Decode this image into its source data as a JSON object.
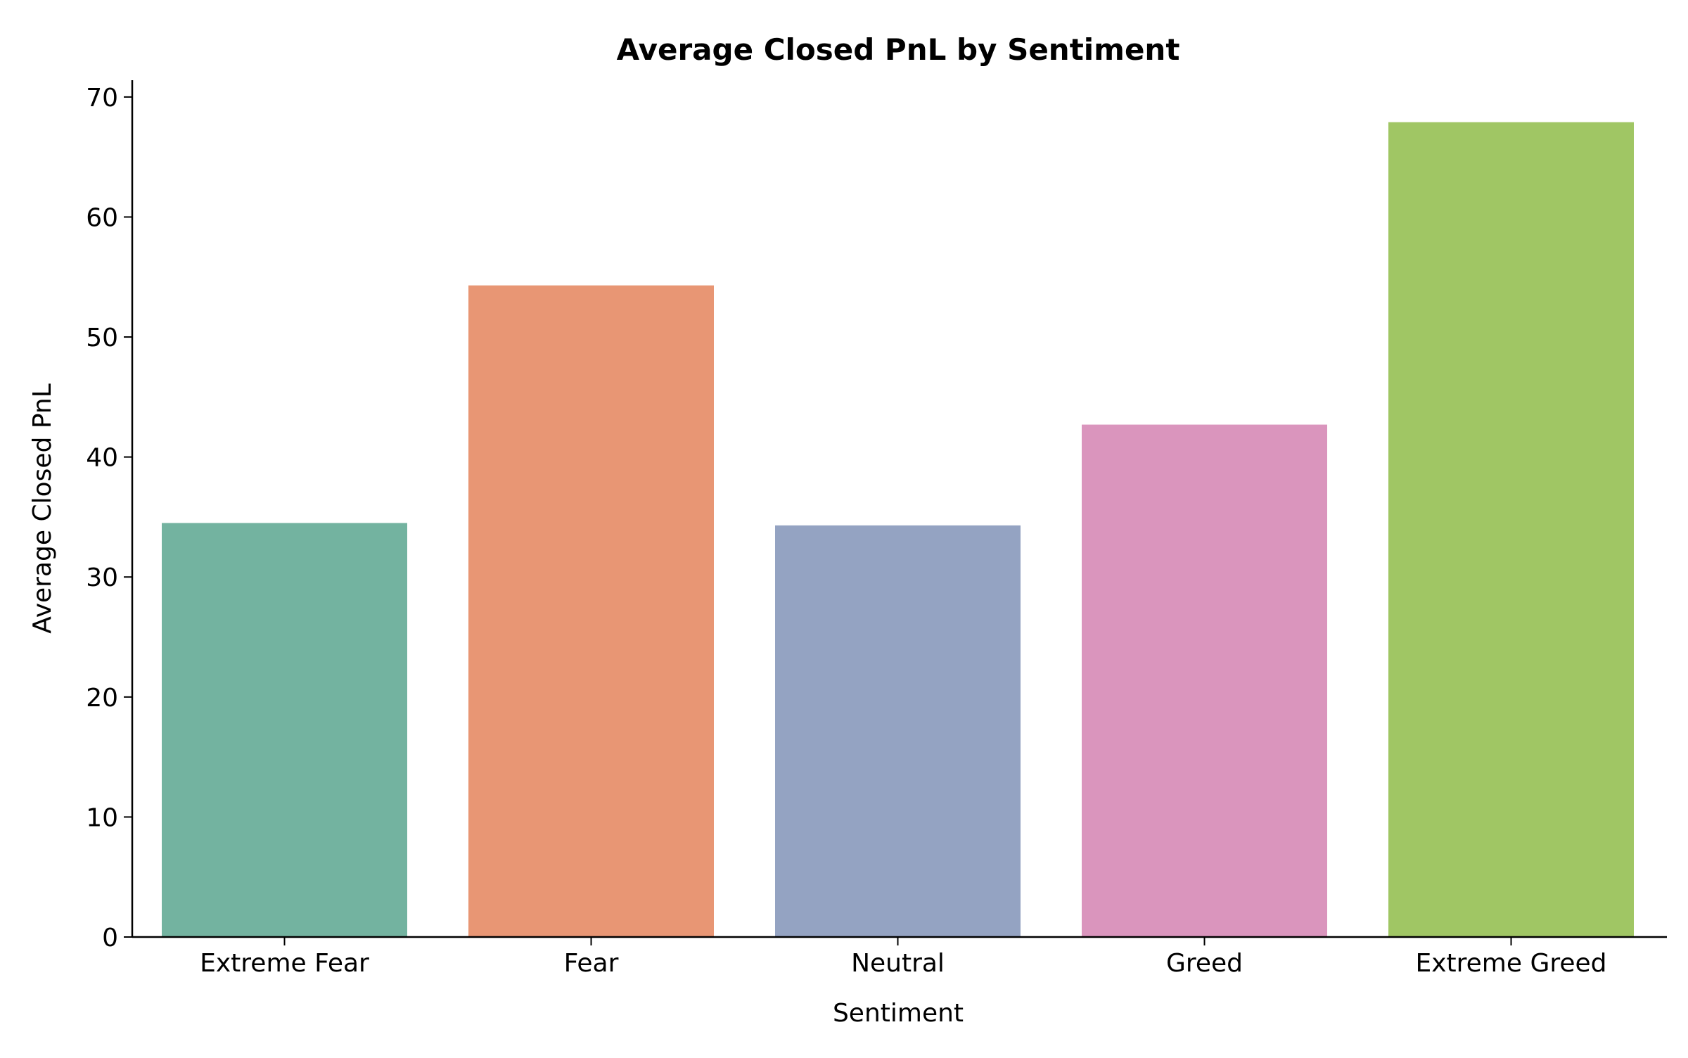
{
  "chart_data": {
    "type": "bar",
    "title": "Average Closed PnL by Sentiment",
    "xlabel": "Sentiment",
    "ylabel": "Average Closed PnL",
    "categories": [
      "Extreme Fear",
      "Fear",
      "Neutral",
      "Greed",
      "Extreme Greed"
    ],
    "values": [
      34.5,
      54.3,
      34.3,
      42.7,
      67.9
    ],
    "colors": [
      "#73b3a0",
      "#e89674",
      "#94a3c2",
      "#da95bd",
      "#a0c664"
    ],
    "ylim": [
      0,
      71.4
    ],
    "yticks": [
      0,
      10,
      20,
      30,
      40,
      50,
      60,
      70
    ],
    "grid": false,
    "baseline": 0,
    "legend": "none"
  }
}
